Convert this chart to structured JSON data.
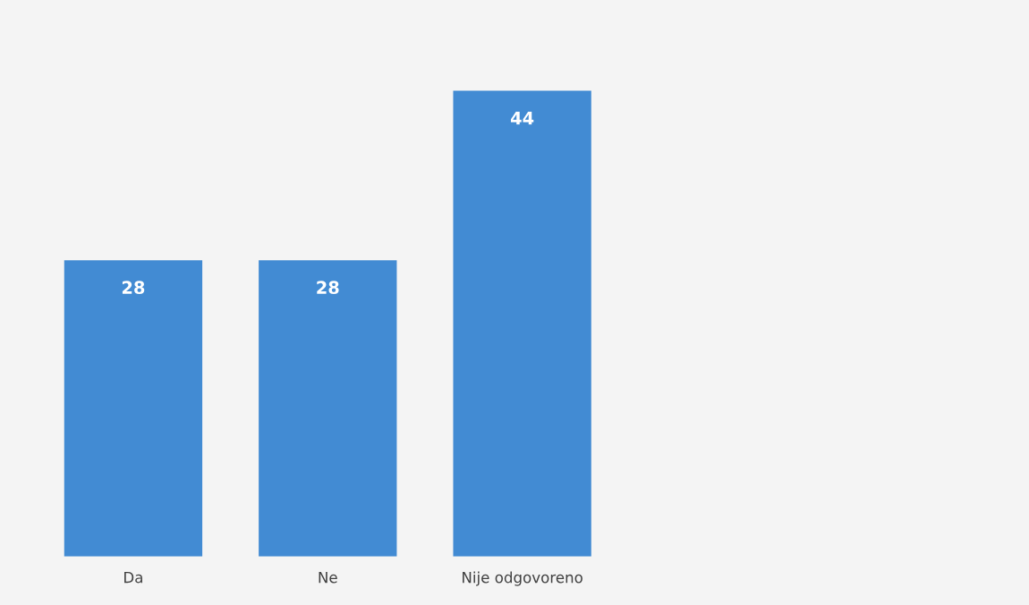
{
  "chart_data": {
    "type": "bar",
    "categories": [
      "Da",
      "Ne",
      "Nije odgovoreno",
      null,
      null
    ],
    "values": [
      28,
      28,
      44,
      null,
      null
    ],
    "color": "#428bd3",
    "data_labels": true,
    "grid": false,
    "legend": false
  }
}
